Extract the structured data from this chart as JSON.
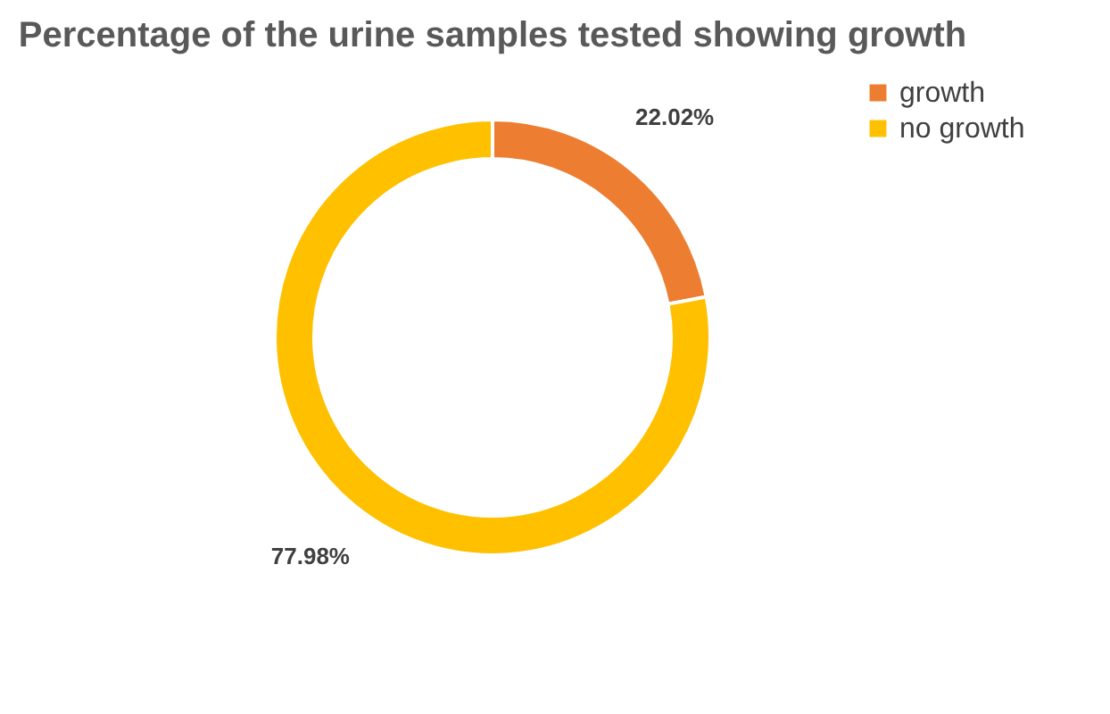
{
  "chart_data": {
    "type": "donut",
    "title": "Percentage of the urine samples tested showing growth",
    "categories": [
      "growth",
      "no growth"
    ],
    "values": [
      22.02,
      77.98
    ],
    "value_labels": [
      "22.02%",
      "77.98%"
    ],
    "colors": [
      "#ed7d31",
      "#ffc000"
    ],
    "legend": "right"
  }
}
